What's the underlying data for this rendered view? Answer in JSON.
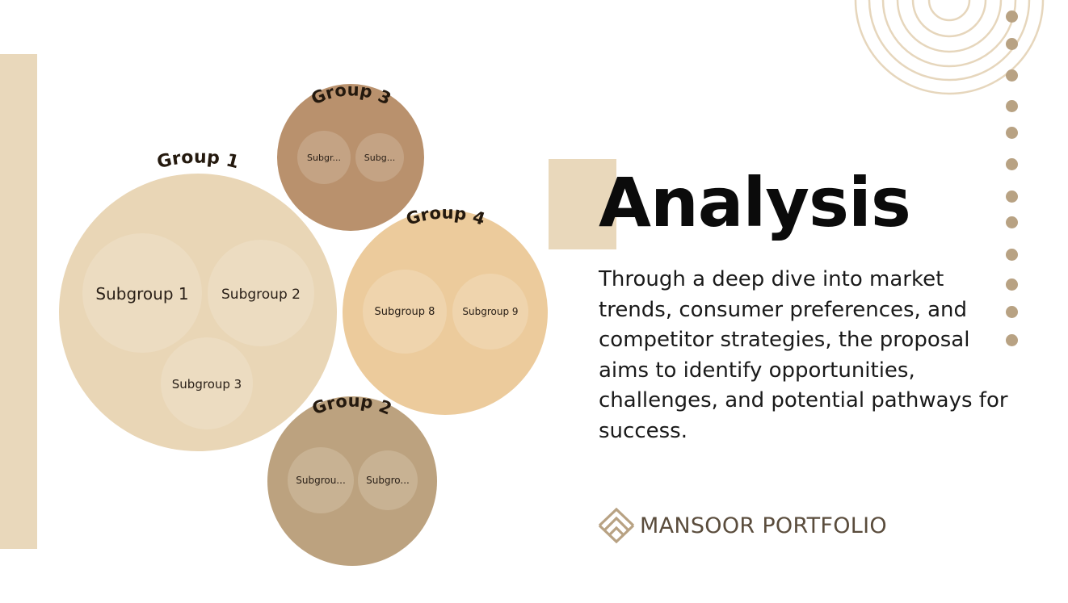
{
  "slide": {
    "title": "Analysis",
    "body": "Through a deep dive into market trends, consumer preferences, and competitor strategies, the proposal aims to identify opportunities, challenges, and potential pathways for success.",
    "brand": {
      "name": "MANSOOR PORTFOLIO",
      "logo_icon": "stacked-chevron-logo-icon"
    }
  },
  "diagram": {
    "groups": [
      {
        "id": "g1",
        "label": "Group 1",
        "subgroups": [
          "Subgroup 1",
          "Subgroup 2",
          "Subgroup 3"
        ]
      },
      {
        "id": "g3",
        "label": "Group 3",
        "subgroups": [
          "Subgr...",
          "Subg..."
        ]
      },
      {
        "id": "g4",
        "label": "Group 4",
        "subgroups": [
          "Subgroup 8",
          "Subgroup 9"
        ]
      },
      {
        "id": "g2",
        "label": "Group 2",
        "subgroups": [
          "Subgrou...",
          "Subgro..."
        ]
      }
    ]
  },
  "colors": {
    "accent": "#e9d8bb",
    "group1": "#e9d6b6",
    "group2": "#bca27f",
    "group3": "#b9916d",
    "group4": "#eccb9c",
    "dots": "#b8a283"
  }
}
